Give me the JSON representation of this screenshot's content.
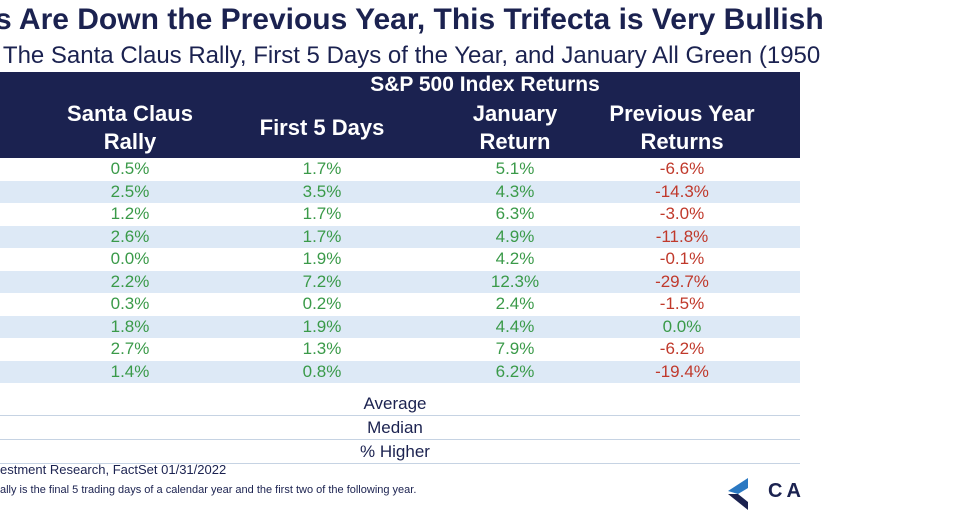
{
  "title": "s Are Down the Previous Year, This Trifecta is Very Bullish",
  "subtitle": "f The Santa Claus Rally, First 5 Days of the Year, and January All Green (1950",
  "chart_data": {
    "type": "table",
    "group_label": "S&P 500 Index Returns",
    "columns": [
      "Santa Claus Rally",
      "First 5 Days",
      "January Return",
      "Previous Year Returns"
    ],
    "rows": [
      [
        "0.5%",
        "1.7%",
        "5.1%",
        "-6.6%"
      ],
      [
        "2.5%",
        "3.5%",
        "4.3%",
        "-14.3%"
      ],
      [
        "1.2%",
        "1.7%",
        "6.3%",
        "-3.0%"
      ],
      [
        "2.6%",
        "1.7%",
        "4.9%",
        "-11.8%"
      ],
      [
        "0.0%",
        "1.9%",
        "4.2%",
        "-0.1%"
      ],
      [
        "2.2%",
        "7.2%",
        "12.3%",
        "-29.7%"
      ],
      [
        "0.3%",
        "0.2%",
        "2.4%",
        "-1.5%"
      ],
      [
        "1.8%",
        "1.9%",
        "4.4%",
        "0.0%"
      ],
      [
        "2.7%",
        "1.3%",
        "7.9%",
        "-6.2%"
      ],
      [
        "1.4%",
        "0.8%",
        "6.2%",
        "-19.4%"
      ]
    ],
    "summary_labels": [
      "Average",
      "Median",
      "% Higher"
    ]
  },
  "footnotes": {
    "source": "estment Research, FactSet 01/31/2022",
    "note": "ally is the final 5 trading days of a calendar year and the first two of the following year."
  },
  "logo": {
    "text": "CA",
    "colors": [
      "#2a78c2",
      "#1b2250"
    ]
  },
  "colors": {
    "header_bg": "#1b2250",
    "stripe": "#dde9f6",
    "positive": "#3a9a49",
    "negative": "#c0392b"
  }
}
